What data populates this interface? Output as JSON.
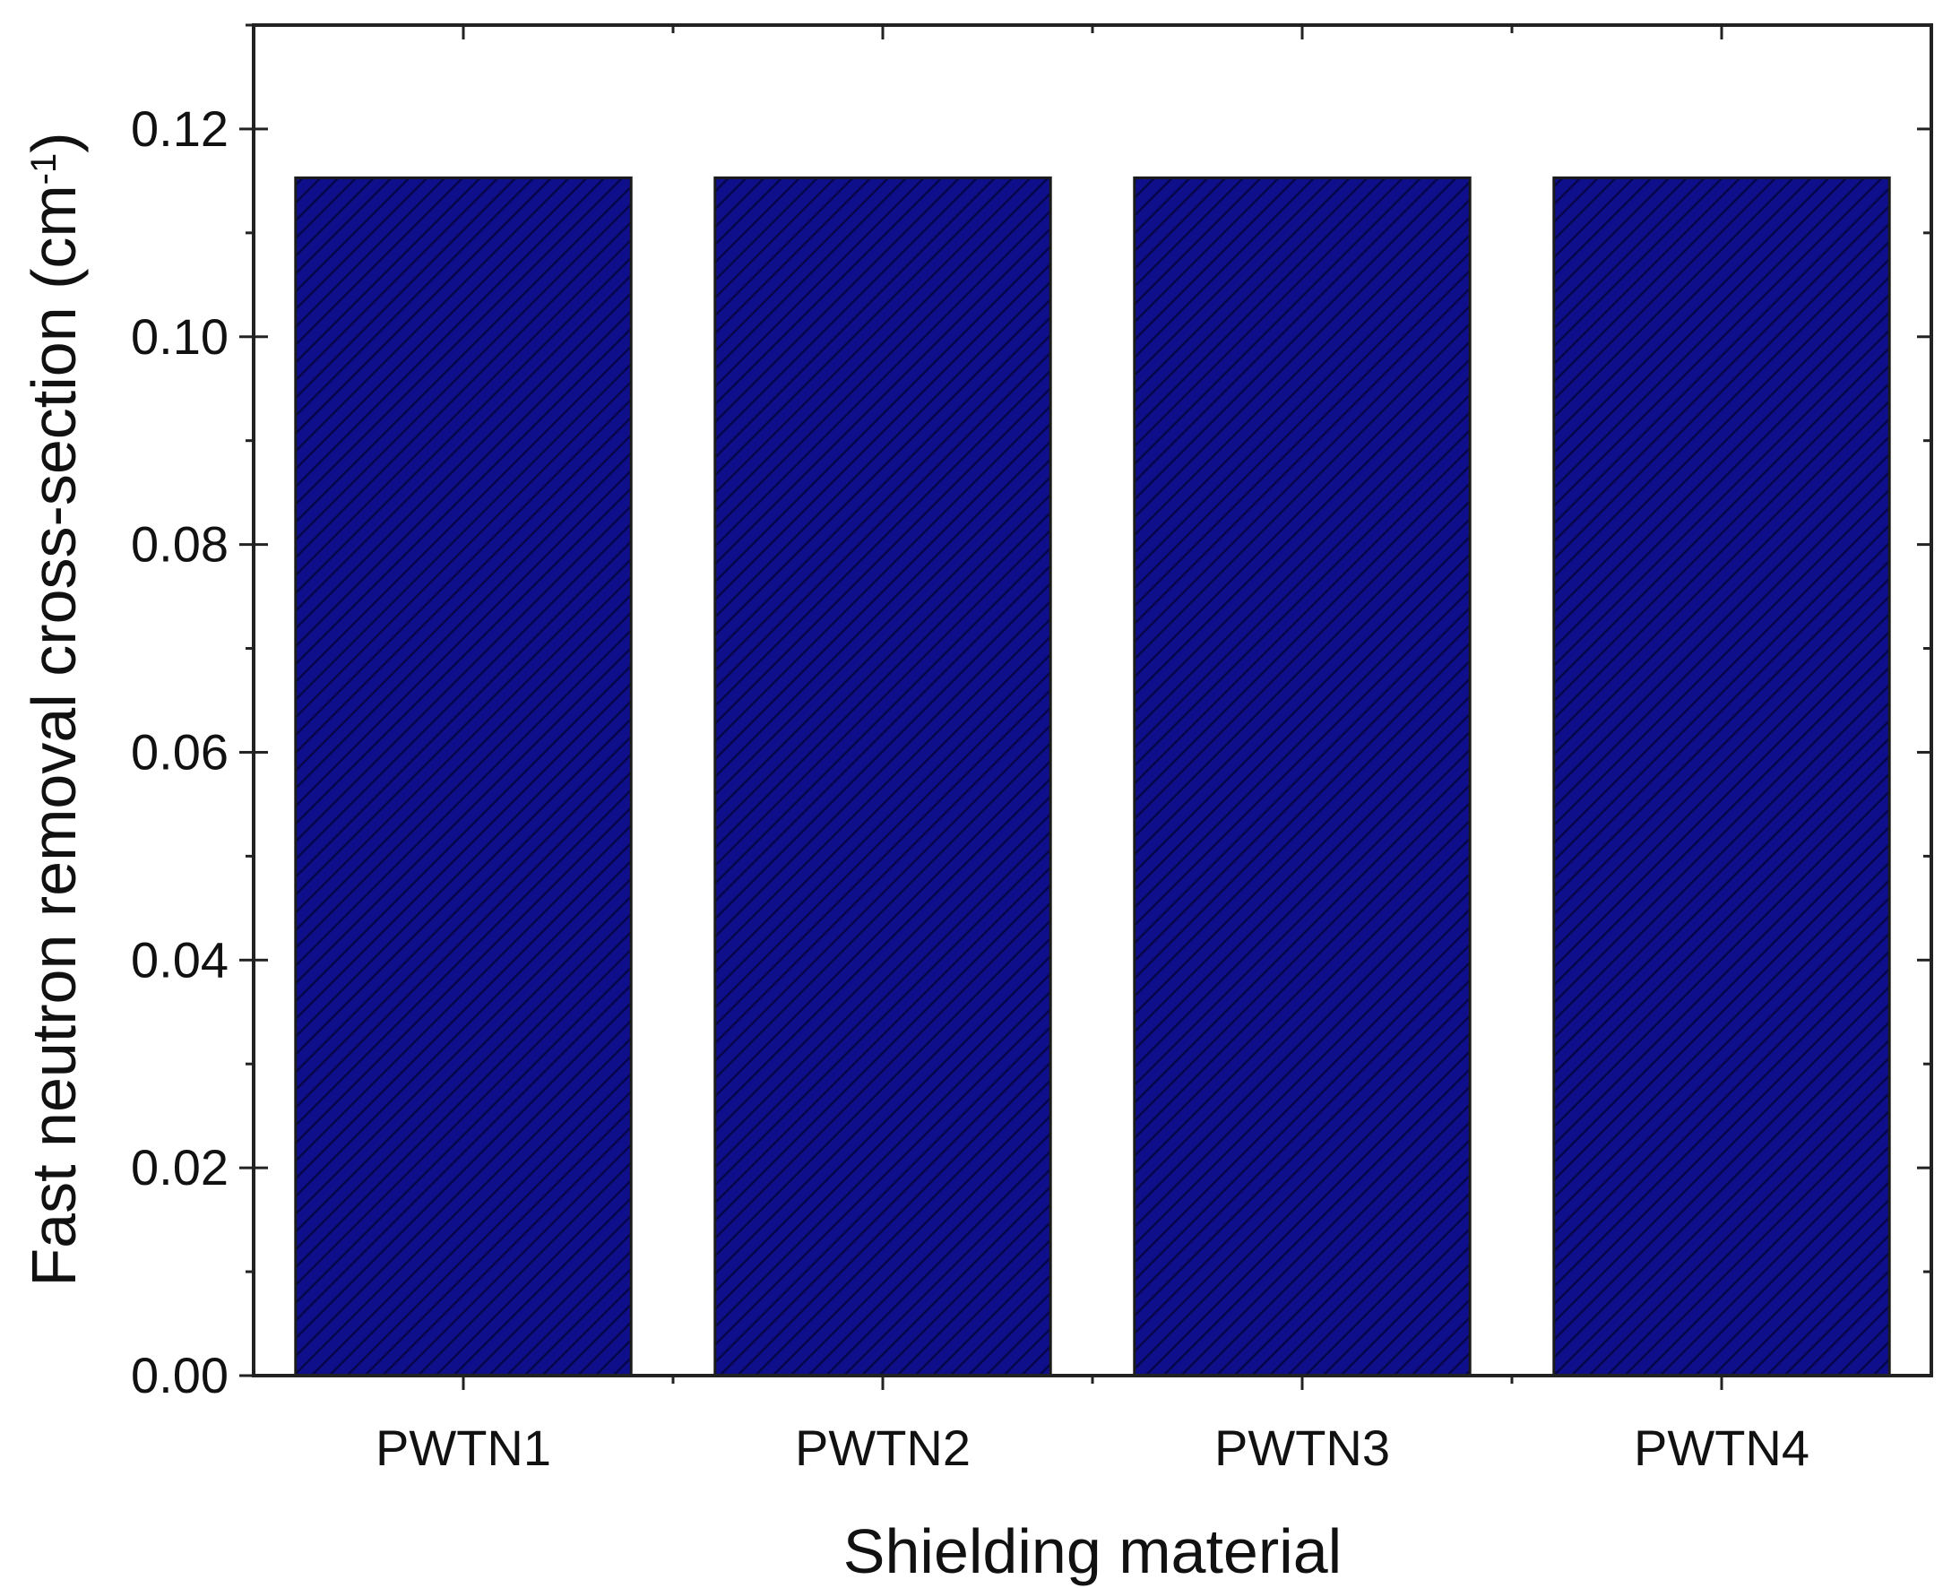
{
  "chart_data": {
    "type": "bar",
    "categories": [
      "PWTN1",
      "PWTN2",
      "PWTN3",
      "PWTN4"
    ],
    "values": [
      0.1153,
      0.1153,
      0.1153,
      0.1153
    ],
    "xlabel": "Shielding material",
    "ylabel": {
      "main": "Fast neutron removal cross-section (cm",
      "superscript": "-1",
      "close": ")"
    },
    "ylim": [
      0,
      0.13
    ],
    "yticks": [
      "0.00",
      "0.02",
      "0.04",
      "0.06",
      "0.08",
      "0.10",
      "0.12"
    ],
    "bar_color": "#0f0f8c",
    "hatch": "diagonal",
    "grid": false
  }
}
